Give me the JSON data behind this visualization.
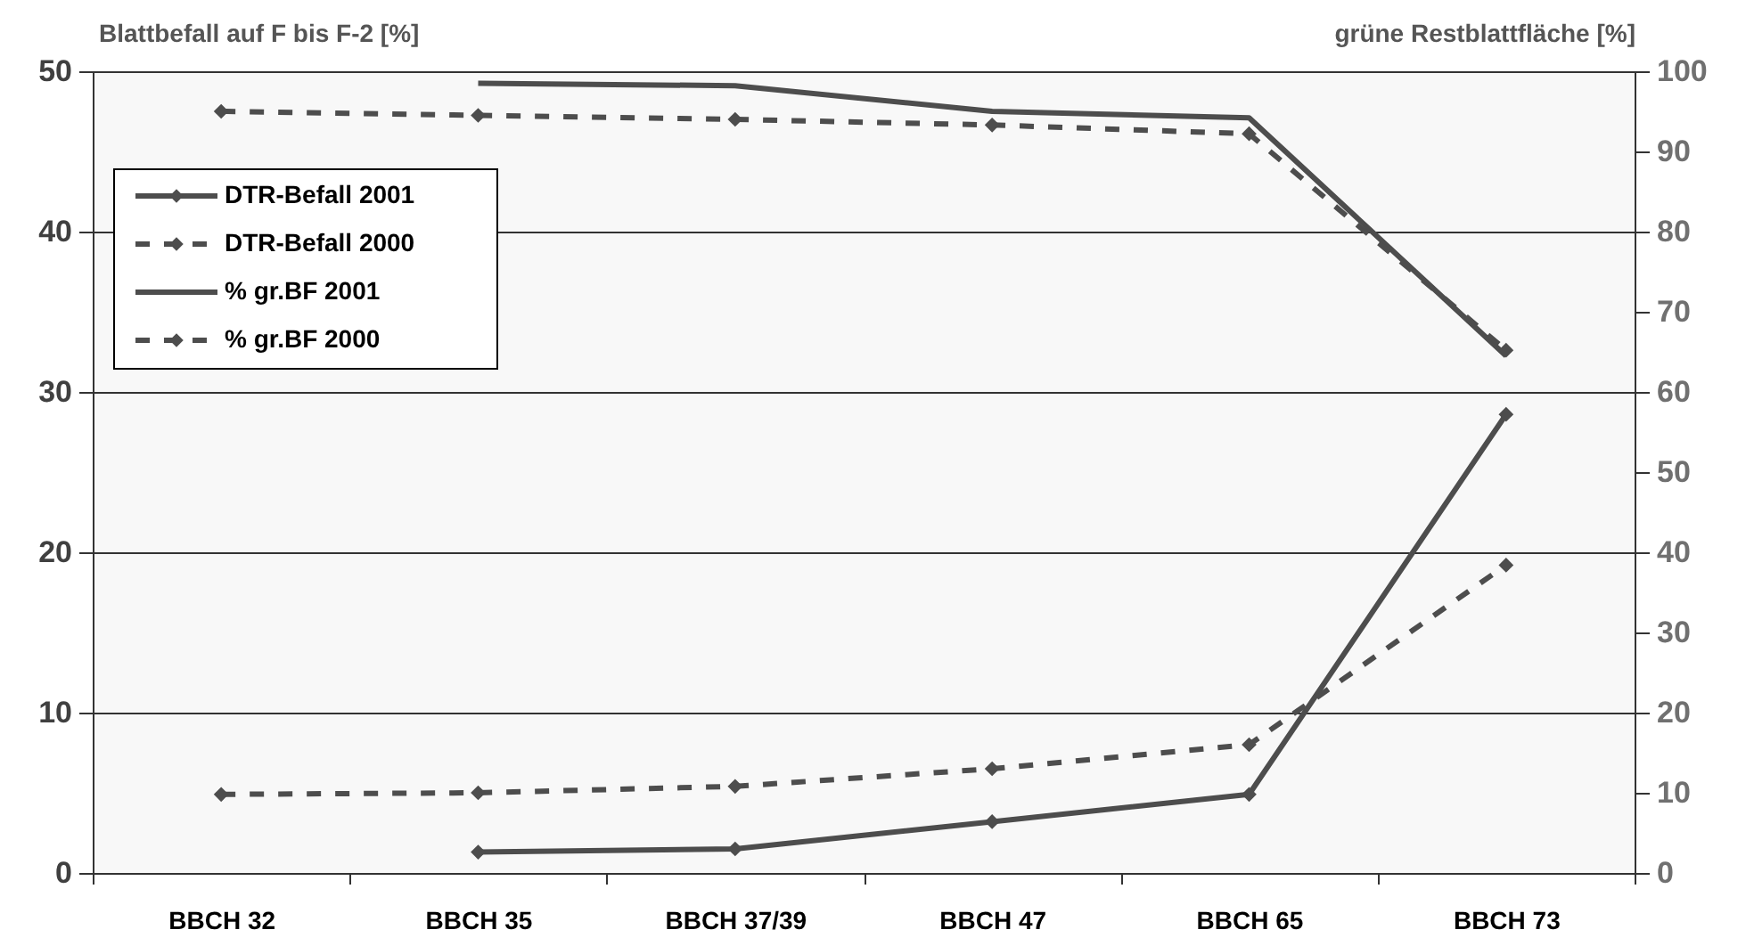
{
  "chart_data": {
    "type": "line",
    "ylabel": "Blattbefall auf F bis F-2 [%]",
    "y2label": "grüne Restblattfläche [%]",
    "categories": [
      "BBCH 32",
      "BBCH 35",
      "BBCH 37/39",
      "BBCH 47",
      "BBCH 65",
      "BBCH 73"
    ],
    "ylim": [
      0,
      50
    ],
    "yticks": [
      0,
      10,
      20,
      30,
      40,
      50
    ],
    "y2lim": [
      0,
      100
    ],
    "y2ticks": [
      0,
      10,
      20,
      30,
      40,
      50,
      60,
      70,
      80,
      90,
      100
    ],
    "grid": "y",
    "legend": "top left",
    "series": [
      {
        "name": "DTR-Befall  2001",
        "color": "#4d4d4d",
        "line_style": "solid",
        "marker": "diamond",
        "values": [
          null,
          1.3,
          1.5,
          3.2,
          4.9,
          28.6
        ]
      },
      {
        "name": "DTR-Befall 2000",
        "color": "#4d4d4d",
        "line_style": "dashed",
        "marker": "diamond",
        "values": [
          4.9,
          5.0,
          5.4,
          6.5,
          8.0,
          19.2
        ]
      },
      {
        "name": "% gr.BF 2001",
        "color": "#4d4d4d",
        "line_style": "solid",
        "marker": "none",
        "axis": "y2",
        "values": [
          null,
          98.5,
          98.2,
          95.0,
          94.2,
          64.5
        ]
      },
      {
        "name": "% gr.BF 2000",
        "color": "#4d4d4d",
        "line_style": "dashed",
        "marker": "diamond",
        "axis": "y2",
        "values": [
          95.0,
          94.5,
          94.0,
          93.3,
          92.2,
          65.2
        ]
      }
    ]
  }
}
